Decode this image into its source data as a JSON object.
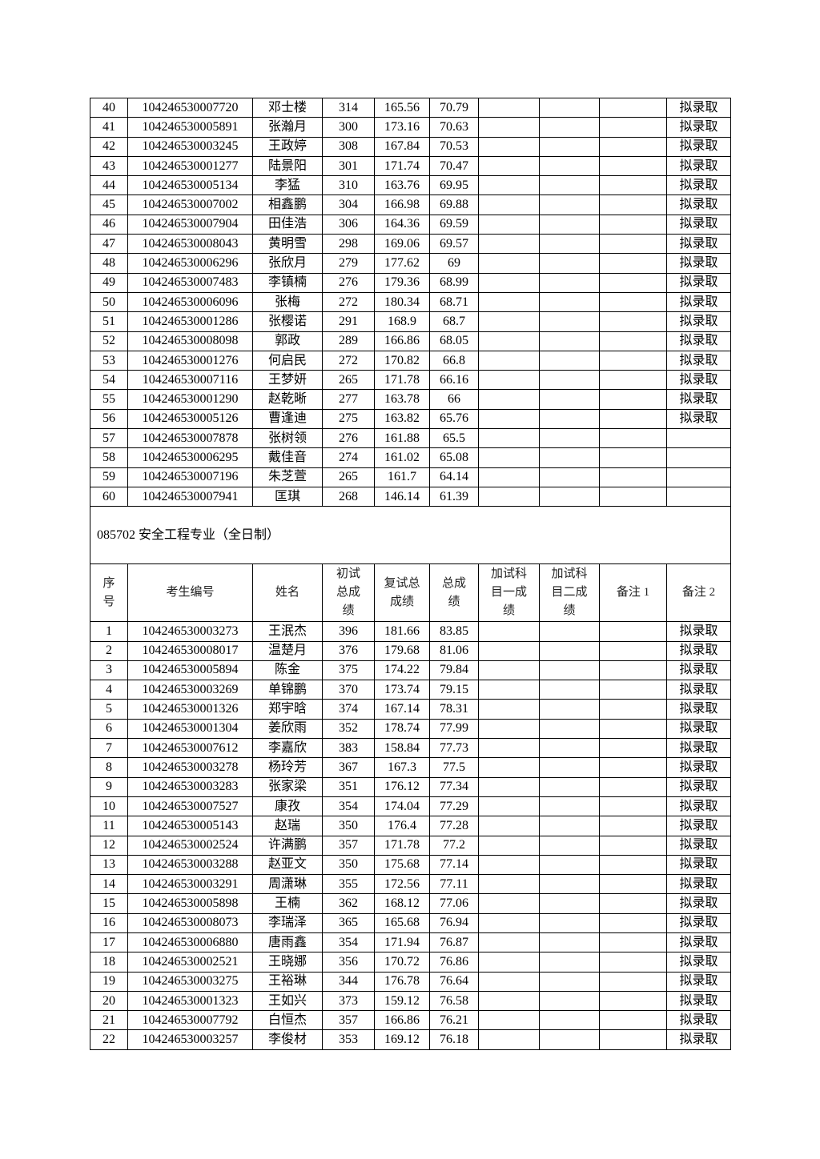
{
  "remark_text": "拟录取",
  "rows_top": [
    [
      "40",
      "104246530007720",
      "邓士楼",
      "314",
      "165.56",
      "70.79",
      "",
      "",
      "",
      "拟录取"
    ],
    [
      "41",
      "104246530005891",
      "张瀚月",
      "300",
      "173.16",
      "70.63",
      "",
      "",
      "",
      "拟录取"
    ],
    [
      "42",
      "104246530003245",
      "王政婷",
      "308",
      "167.84",
      "70.53",
      "",
      "",
      "",
      "拟录取"
    ],
    [
      "43",
      "104246530001277",
      "陆景阳",
      "301",
      "171.74",
      "70.47",
      "",
      "",
      "",
      "拟录取"
    ],
    [
      "44",
      "104246530005134",
      "李猛",
      "310",
      "163.76",
      "69.95",
      "",
      "",
      "",
      "拟录取"
    ],
    [
      "45",
      "104246530007002",
      "相鑫鹏",
      "304",
      "166.98",
      "69.88",
      "",
      "",
      "",
      "拟录取"
    ],
    [
      "46",
      "104246530007904",
      "田佳浩",
      "306",
      "164.36",
      "69.59",
      "",
      "",
      "",
      "拟录取"
    ],
    [
      "47",
      "104246530008043",
      "黄明雪",
      "298",
      "169.06",
      "69.57",
      "",
      "",
      "",
      "拟录取"
    ],
    [
      "48",
      "104246530006296",
      "张欣月",
      "279",
      "177.62",
      "69",
      "",
      "",
      "",
      "拟录取"
    ],
    [
      "49",
      "104246530007483",
      "李镇楠",
      "276",
      "179.36",
      "68.99",
      "",
      "",
      "",
      "拟录取"
    ],
    [
      "50",
      "104246530006096",
      "张梅",
      "272",
      "180.34",
      "68.71",
      "",
      "",
      "",
      "拟录取"
    ],
    [
      "51",
      "104246530001286",
      "张樱诺",
      "291",
      "168.9",
      "68.7",
      "",
      "",
      "",
      "拟录取"
    ],
    [
      "52",
      "104246530008098",
      "郭政",
      "289",
      "166.86",
      "68.05",
      "",
      "",
      "",
      "拟录取"
    ],
    [
      "53",
      "104246530001276",
      "何启民",
      "272",
      "170.82",
      "66.8",
      "",
      "",
      "",
      "拟录取"
    ],
    [
      "54",
      "104246530007116",
      "王梦妍",
      "265",
      "171.78",
      "66.16",
      "",
      "",
      "",
      "拟录取"
    ],
    [
      "55",
      "104246530001290",
      "赵乾晰",
      "277",
      "163.78",
      "66",
      "",
      "",
      "",
      "拟录取"
    ],
    [
      "56",
      "104246530005126",
      "曹逢迪",
      "275",
      "163.82",
      "65.76",
      "",
      "",
      "",
      "拟录取"
    ],
    [
      "57",
      "104246530007878",
      "张树领",
      "276",
      "161.88",
      "65.5",
      "",
      "",
      "",
      ""
    ],
    [
      "58",
      "104246530006295",
      "戴佳音",
      "274",
      "161.02",
      "65.08",
      "",
      "",
      "",
      ""
    ],
    [
      "59",
      "104246530007196",
      "朱芝萱",
      "265",
      "161.7",
      "64.14",
      "",
      "",
      "",
      ""
    ],
    [
      "60",
      "104246530007941",
      "匡琪",
      "268",
      "146.14",
      "61.39",
      "",
      "",
      "",
      ""
    ]
  ],
  "section_title": "085702  安全工程专业（全日制）",
  "headers": [
    "序号",
    "考生编号",
    "姓名",
    "初试总成绩",
    "复试总成绩",
    "总成绩",
    "加试科目一成绩",
    "加试科目二成绩",
    "备注 1",
    "备注 2"
  ],
  "rows_bottom": [
    [
      "1",
      "104246530003273",
      "王泯杰",
      "396",
      "181.66",
      "83.85",
      "",
      "",
      "",
      "拟录取"
    ],
    [
      "2",
      "104246530008017",
      "温楚月",
      "376",
      "179.68",
      "81.06",
      "",
      "",
      "",
      "拟录取"
    ],
    [
      "3",
      "104246530005894",
      "陈金",
      "375",
      "174.22",
      "79.84",
      "",
      "",
      "",
      "拟录取"
    ],
    [
      "4",
      "104246530003269",
      "单锦鹏",
      "370",
      "173.74",
      "79.15",
      "",
      "",
      "",
      "拟录取"
    ],
    [
      "5",
      "104246530001326",
      "郑宇晗",
      "374",
      "167.14",
      "78.31",
      "",
      "",
      "",
      "拟录取"
    ],
    [
      "6",
      "104246530001304",
      "姜欣雨",
      "352",
      "178.74",
      "77.99",
      "",
      "",
      "",
      "拟录取"
    ],
    [
      "7",
      "104246530007612",
      "李嘉欣",
      "383",
      "158.84",
      "77.73",
      "",
      "",
      "",
      "拟录取"
    ],
    [
      "8",
      "104246530003278",
      "杨玲芳",
      "367",
      "167.3",
      "77.5",
      "",
      "",
      "",
      "拟录取"
    ],
    [
      "9",
      "104246530003283",
      "张家梁",
      "351",
      "176.12",
      "77.34",
      "",
      "",
      "",
      "拟录取"
    ],
    [
      "10",
      "104246530007527",
      "康孜",
      "354",
      "174.04",
      "77.29",
      "",
      "",
      "",
      "拟录取"
    ],
    [
      "11",
      "104246530005143",
      "赵瑞",
      "350",
      "176.4",
      "77.28",
      "",
      "",
      "",
      "拟录取"
    ],
    [
      "12",
      "104246530002524",
      "许满鹏",
      "357",
      "171.78",
      "77.2",
      "",
      "",
      "",
      "拟录取"
    ],
    [
      "13",
      "104246530003288",
      "赵亚文",
      "350",
      "175.68",
      "77.14",
      "",
      "",
      "",
      "拟录取"
    ],
    [
      "14",
      "104246530003291",
      "周潇琳",
      "355",
      "172.56",
      "77.11",
      "",
      "",
      "",
      "拟录取"
    ],
    [
      "15",
      "104246530005898",
      "王楠",
      "362",
      "168.12",
      "77.06",
      "",
      "",
      "",
      "拟录取"
    ],
    [
      "16",
      "104246530008073",
      "李瑞泽",
      "365",
      "165.68",
      "76.94",
      "",
      "",
      "",
      "拟录取"
    ],
    [
      "17",
      "104246530006880",
      "唐雨鑫",
      "354",
      "171.94",
      "76.87",
      "",
      "",
      "",
      "拟录取"
    ],
    [
      "18",
      "104246530002521",
      "王晓娜",
      "356",
      "170.72",
      "76.86",
      "",
      "",
      "",
      "拟录取"
    ],
    [
      "19",
      "104246530003275",
      "王裕琳",
      "344",
      "176.78",
      "76.64",
      "",
      "",
      "",
      "拟录取"
    ],
    [
      "20",
      "104246530001323",
      "王如兴",
      "373",
      "159.12",
      "76.58",
      "",
      "",
      "",
      "拟录取"
    ],
    [
      "21",
      "104246530007792",
      "白恒杰",
      "357",
      "166.86",
      "76.21",
      "",
      "",
      "",
      "拟录取"
    ],
    [
      "22",
      "104246530003257",
      "李俊材",
      "353",
      "169.12",
      "76.18",
      "",
      "",
      "",
      "拟录取"
    ]
  ]
}
